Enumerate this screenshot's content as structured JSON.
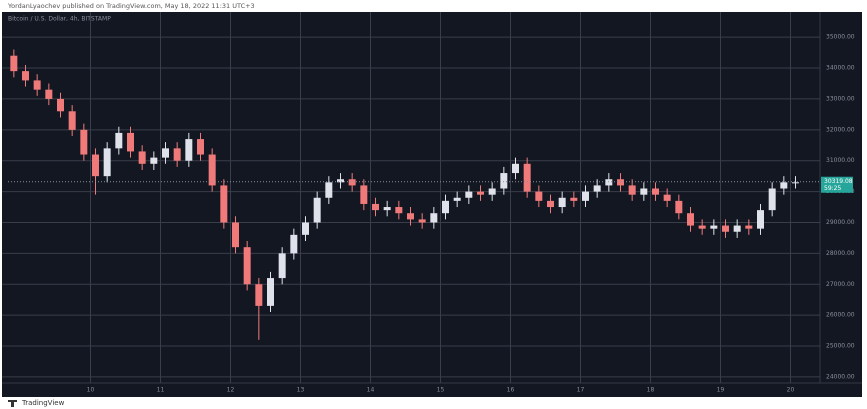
{
  "chart_data": {
    "type": "candlestick",
    "publisher_note": "YordanLyaochev published on TradingView.com, May 18, 2022 11:31 UTC+3",
    "symbol": "Bitcoin / U.S. Dollar, 4h, BITSTAMP",
    "brand": "TradingView",
    "up_color": "#dfe2ea",
    "down_color": "#f07a7a",
    "grid": true,
    "categories": [
      null,
      null,
      null,
      null,
      null,
      null,
      null,
      "10",
      null,
      null,
      null,
      null,
      null,
      "11",
      null,
      null,
      null,
      null,
      null,
      "12",
      null,
      null,
      null,
      null,
      null,
      "13",
      null,
      null,
      null,
      null,
      null,
      "14",
      null,
      null,
      null,
      null,
      null,
      "15",
      null,
      null,
      null,
      null,
      null,
      "16",
      null,
      null,
      null,
      null,
      null,
      "17",
      null,
      null,
      null,
      null,
      null,
      "18",
      null,
      null,
      null,
      null,
      null,
      "19",
      null,
      null,
      null,
      null,
      null,
      "20"
    ],
    "open": [
      34400,
      33900,
      33600,
      33300,
      33000,
      32600,
      32000,
      31200,
      30500,
      31400,
      31900,
      31300,
      30900,
      31100,
      31400,
      31000,
      31700,
      31200,
      30200,
      29000,
      28200,
      27000,
      26300,
      27200,
      28000,
      28600,
      29000,
      29800,
      30300,
      30400,
      30200,
      29600,
      29400,
      29500,
      29300,
      29100,
      29000,
      29300,
      29700,
      29800,
      30000,
      29900,
      30100,
      30600,
      30900,
      30000,
      29700,
      29500,
      29800,
      29700,
      30000,
      30200,
      30400,
      30200,
      29900,
      30100,
      29900,
      29700,
      29300,
      28900,
      28800,
      28900,
      28700,
      28900,
      28800,
      29400,
      30100,
      30300
    ],
    "high": [
      34600,
      34100,
      33800,
      33500,
      33200,
      32800,
      32200,
      31400,
      31600,
      32100,
      32100,
      31500,
      31300,
      31600,
      31600,
      31900,
      31900,
      31400,
      30400,
      29200,
      28400,
      27200,
      27400,
      28200,
      28800,
      29200,
      30000,
      30500,
      30600,
      30600,
      30400,
      29800,
      29700,
      29700,
      29500,
      29300,
      29500,
      29900,
      30000,
      30200,
      30200,
      30300,
      30800,
      31100,
      31100,
      30200,
      29900,
      30000,
      30000,
      30200,
      30400,
      30600,
      30600,
      30400,
      30300,
      30300,
      30100,
      29900,
      29500,
      29100,
      29100,
      29100,
      29100,
      29100,
      29600,
      30300,
      30500,
      30500
    ],
    "low": [
      33700,
      33400,
      33100,
      32800,
      32400,
      31800,
      31000,
      29900,
      30300,
      31200,
      31100,
      30700,
      30700,
      30900,
      30800,
      30800,
      31000,
      30000,
      28800,
      28000,
      26800,
      25200,
      26100,
      27000,
      27800,
      28400,
      28800,
      29600,
      30100,
      30000,
      29400,
      29200,
      29200,
      29100,
      28900,
      28800,
      28800,
      29100,
      29500,
      29600,
      29700,
      29700,
      29900,
      30400,
      29800,
      29500,
      29300,
      29300,
      29500,
      29500,
      29800,
      30000,
      30000,
      29700,
      29700,
      29700,
      29500,
      29100,
      28700,
      28600,
      28600,
      28500,
      28500,
      28600,
      28600,
      29200,
      29900,
      30100
    ],
    "close": [
      33900,
      33600,
      33300,
      33000,
      32600,
      32000,
      31200,
      30500,
      31400,
      31900,
      31300,
      30900,
      31100,
      31400,
      31000,
      31700,
      31200,
      30200,
      29000,
      28200,
      27000,
      26300,
      27200,
      28000,
      28600,
      29000,
      29800,
      30300,
      30400,
      30200,
      29600,
      29400,
      29500,
      29300,
      29100,
      29000,
      29300,
      29700,
      29800,
      30000,
      29900,
      30100,
      30600,
      30900,
      30000,
      29700,
      29500,
      29800,
      29700,
      30000,
      30200,
      30400,
      30200,
      29900,
      30100,
      29900,
      29700,
      29300,
      28900,
      28800,
      28900,
      28700,
      28900,
      28800,
      29400,
      30100,
      30300,
      30300
    ],
    "last_price": 30319.08,
    "countdown": "59:25",
    "ylim": [
      23900,
      35750
    ],
    "yticks": [
      {
        "value": 24000,
        "label": "24000.00"
      },
      {
        "value": 25000,
        "label": "25000.00"
      },
      {
        "value": 26000,
        "label": "26000.00"
      },
      {
        "value": 27000,
        "label": "27000.00"
      },
      {
        "value": 28000,
        "label": "28000.00"
      },
      {
        "value": 29000,
        "label": "29000.00"
      },
      {
        "value": 30000,
        "label": "30000.00"
      },
      {
        "value": 31000,
        "label": "31000.00"
      },
      {
        "value": 32000,
        "label": "32000.00"
      },
      {
        "value": 33000,
        "label": "33000.00"
      },
      {
        "value": 34000,
        "label": "34000.00"
      },
      {
        "value": 35000,
        "label": "35000.00"
      }
    ]
  }
}
